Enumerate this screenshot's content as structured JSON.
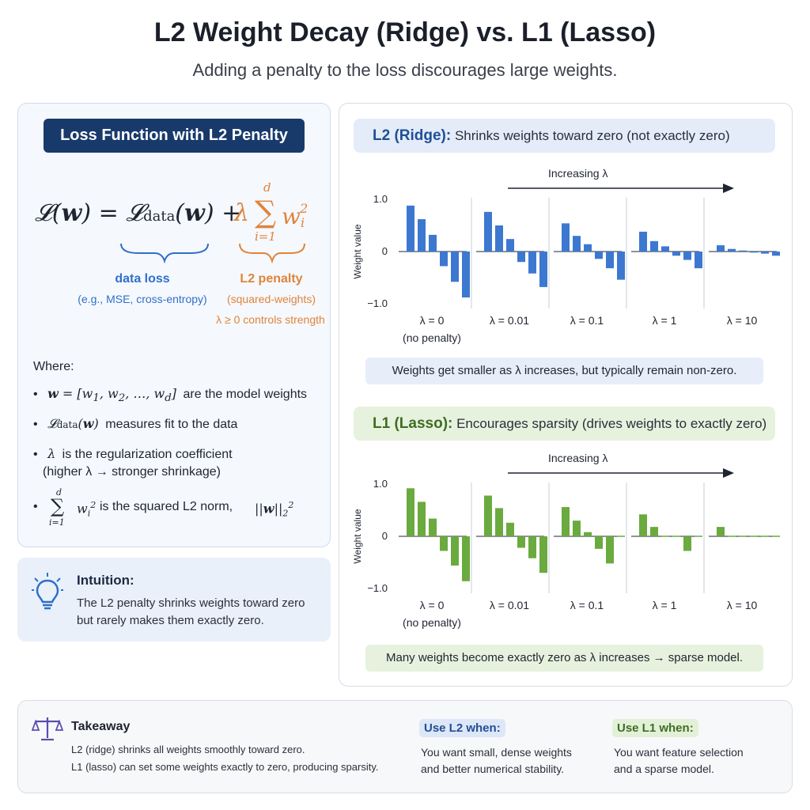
{
  "header": {
    "title": "L2 Weight Decay (Ridge) vs. L1 (Lasso)",
    "subtitle": "Adding a penalty to the loss discourages large weights."
  },
  "left": {
    "badge": "Loss Function with L2 Penalty",
    "data_loss_label": "data loss",
    "data_loss_note": "(e.g., MSE, cross-entropy)",
    "penalty_label": "L2 penalty",
    "penalty_note": "(squared-weights)",
    "lambda_note": "λ ≥ 0 controls strength",
    "where": "Where:",
    "b1_text": "are the model weights",
    "b2_text": "measures fit to the data",
    "b3_line1": "is the regularization coefficient",
    "b3_line2": "(higher λ → stronger shrinkage)",
    "b4_text": "is the squared L2 norm,"
  },
  "intuition": {
    "title": "Intuition:",
    "line1": "The L2 penalty shrinks weights toward zero",
    "line2": "but rarely makes them exactly zero."
  },
  "l2": {
    "header_bold": "L2 (Ridge):",
    "header_rest": " Shrinks weights toward zero (not exactly zero)",
    "arrow_label": "Increasing λ",
    "caption": "Weights get smaller as λ increases, but typically remain non-zero."
  },
  "l1": {
    "header_bold": "L1 (Lasso):",
    "header_rest": " Encourages sparsity (drives weights to exactly zero)",
    "arrow_label": "Increasing λ",
    "caption": "Many weights become exactly zero as λ increases → sparse model."
  },
  "chart_data": [
    {
      "type": "bar",
      "title": "",
      "ylabel": "Weight value",
      "ylim": [
        -1.0,
        1.0
      ],
      "yticks": [
        "1.0",
        "0",
        "−1.0"
      ],
      "groups": [
        "λ = 0",
        "λ = 0.01",
        "λ = 0.1",
        "λ = 1",
        "λ = 10"
      ],
      "group_sublabels": [
        "(no penalty)",
        "",
        "",
        "",
        ""
      ],
      "color": "#3d78d0",
      "values": [
        [
          0.88,
          0.62,
          0.32,
          -0.28,
          -0.58,
          -0.88
        ],
        [
          0.76,
          0.5,
          0.24,
          -0.2,
          -0.42,
          -0.68
        ],
        [
          0.54,
          0.3,
          0.14,
          -0.14,
          -0.32,
          -0.54
        ],
        [
          0.38,
          0.2,
          0.1,
          -0.08,
          -0.16,
          -0.32
        ],
        [
          0.12,
          0.05,
          0.02,
          -0.02,
          -0.04,
          -0.08
        ]
      ]
    },
    {
      "type": "bar",
      "title": "",
      "ylabel": "Weight value",
      "ylim": [
        -1.0,
        1.0
      ],
      "yticks": [
        "1.0",
        "0",
        "−1.0"
      ],
      "groups": [
        "λ = 0",
        "λ = 0.01",
        "λ = 0.1",
        "λ = 1",
        "λ = 10"
      ],
      "group_sublabels": [
        "(no penalty)",
        "",
        "",
        "",
        ""
      ],
      "color": "#6aaa3f",
      "values": [
        [
          0.92,
          0.66,
          0.34,
          -0.28,
          -0.56,
          -0.86
        ],
        [
          0.78,
          0.54,
          0.26,
          -0.22,
          -0.42,
          -0.7
        ],
        [
          0.56,
          0.3,
          0.08,
          -0.24,
          -0.52,
          0.0
        ],
        [
          0.42,
          0.18,
          0.0,
          0.0,
          -0.28,
          0.0
        ],
        [
          0.18,
          0.0,
          0.0,
          0.0,
          0.0,
          0.0
        ]
      ]
    }
  ],
  "takeaway": {
    "title": "Takeaway",
    "line1": "L2 (ridge) shrinks all weights smoothly toward zero.",
    "line2": "L1 (lasso) can set some weights exactly to zero, producing sparsity.",
    "use_l2_label": "Use L2 when:",
    "use_l2_line1": "You want small, dense weights",
    "use_l2_line2": "and better numerical stability.",
    "use_l1_label": "Use L1 when:",
    "use_l1_line1": "You want feature selection",
    "use_l1_line2": "and a sparse model."
  },
  "icons": {
    "intuition": "lightbulb-icon",
    "takeaway": "scale-icon"
  }
}
